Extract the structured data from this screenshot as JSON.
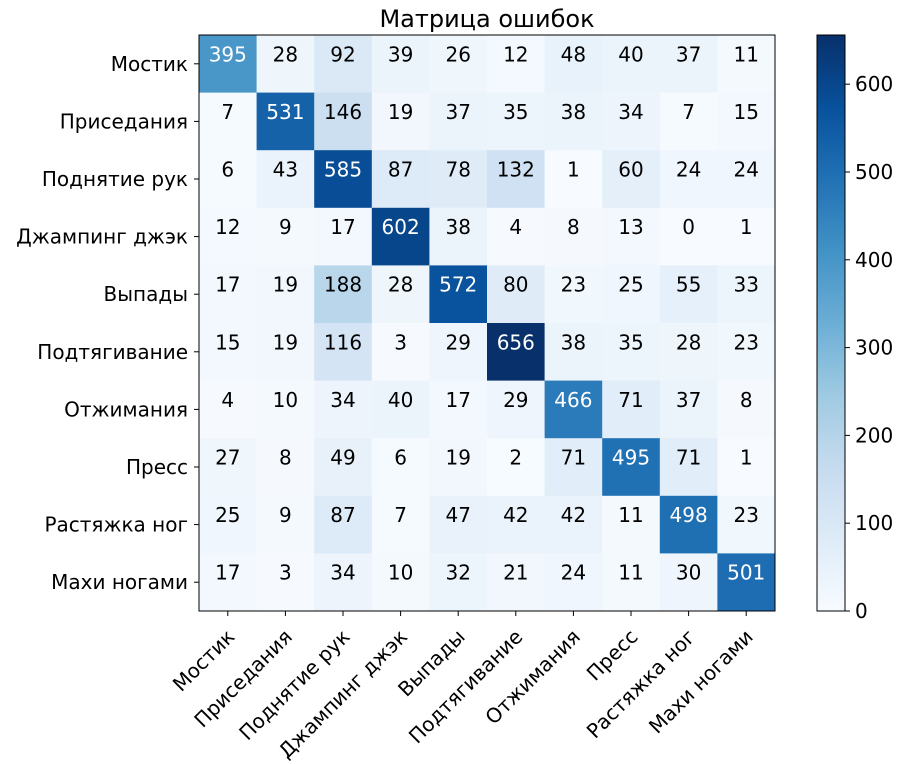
{
  "chart_data": {
    "type": "heatmap",
    "title": "Матрица ошибок",
    "xlabel": "",
    "ylabel": "",
    "x_categories": [
      "Мостик",
      "Приседания",
      "Поднятие рук",
      "Джампинг джэк",
      "Выпады",
      "Подтягивание",
      "Отжимания",
      "Пресс",
      "Растяжка ног",
      "Махи ногами"
    ],
    "y_categories": [
      "Мостик",
      "Приседания",
      "Поднятие рук",
      "Джампинг джэк",
      "Выпады",
      "Подтягивание",
      "Отжимания",
      "Пресс",
      "Растяжка ног",
      "Махи ногами"
    ],
    "values": [
      [
        395,
        28,
        92,
        39,
        26,
        12,
        48,
        40,
        37,
        11
      ],
      [
        7,
        531,
        146,
        19,
        37,
        35,
        38,
        34,
        7,
        15
      ],
      [
        6,
        43,
        585,
        87,
        78,
        132,
        1,
        60,
        24,
        24
      ],
      [
        12,
        9,
        17,
        602,
        38,
        4,
        8,
        13,
        0,
        1
      ],
      [
        17,
        19,
        188,
        28,
        572,
        80,
        23,
        25,
        55,
        33
      ],
      [
        15,
        19,
        116,
        3,
        29,
        656,
        38,
        35,
        28,
        23
      ],
      [
        4,
        10,
        34,
        40,
        17,
        29,
        466,
        71,
        37,
        8
      ],
      [
        27,
        8,
        49,
        6,
        19,
        2,
        71,
        495,
        71,
        1
      ],
      [
        25,
        9,
        87,
        7,
        47,
        42,
        42,
        11,
        498,
        23
      ],
      [
        17,
        3,
        34,
        10,
        32,
        21,
        24,
        11,
        30,
        501
      ]
    ],
    "colormap": "Blues",
    "color_low": "#f7fbff",
    "color_high": "#08306b",
    "vmin": 0,
    "vmax": 656,
    "colorbar_ticks": [
      0,
      100,
      200,
      300,
      400,
      500,
      600
    ],
    "grid": false
  }
}
